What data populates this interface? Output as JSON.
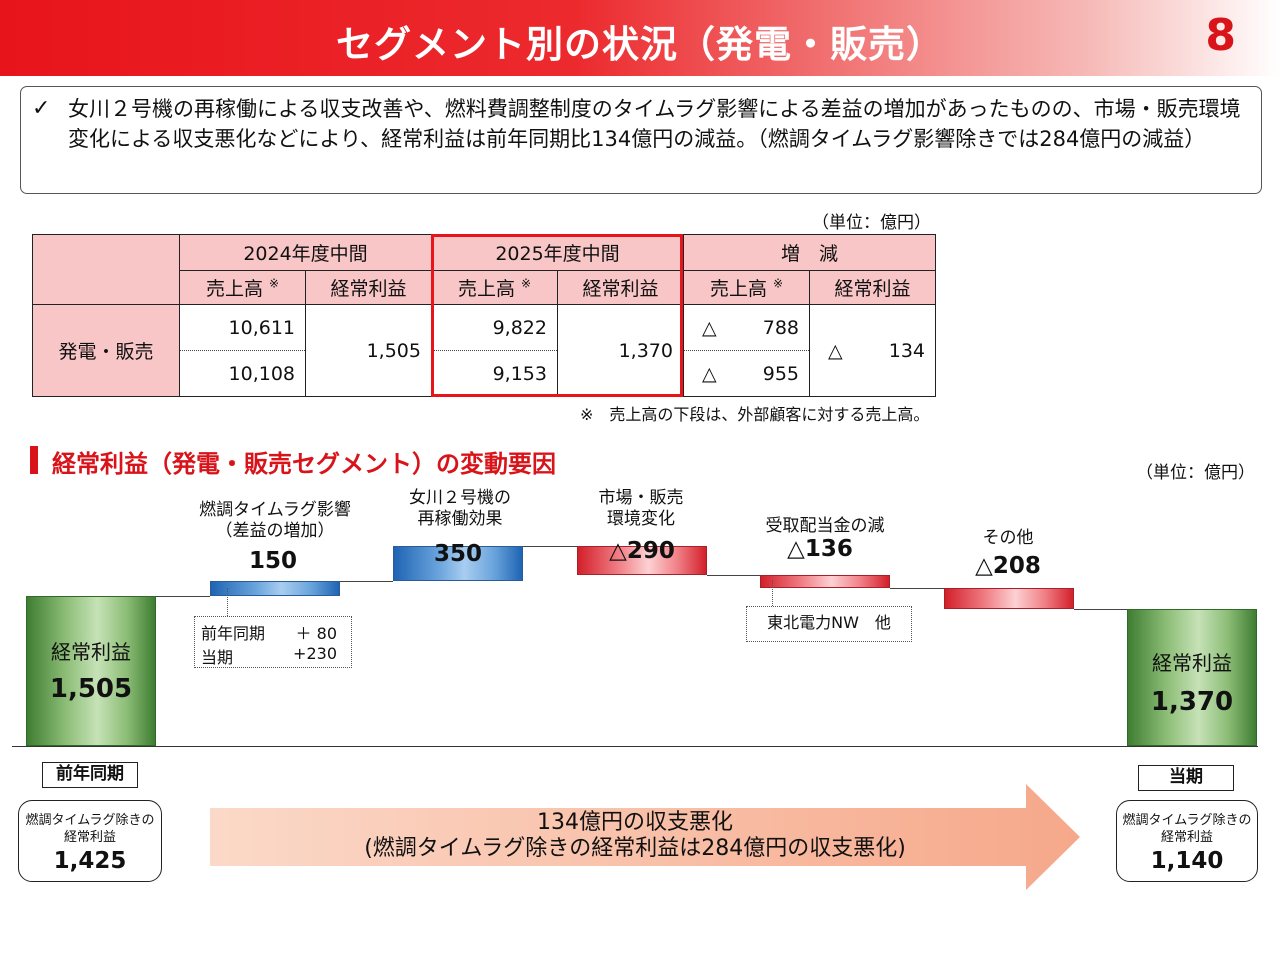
{
  "header": {
    "title": "セグメント別の状況（発電・販売）",
    "page_number": "8"
  },
  "summary": {
    "check_mark": "✓",
    "text": "女川２号機の再稼働による収支改善や、燃料費調整制度のタイムラグ影響による差益の増加があったものの、市場・販売環境変化による収支悪化などにより、経常利益は前年同期比134億円の減益。（燃調タイムラグ影響除きでは284億円の減益）"
  },
  "table": {
    "unit": "（単位：億円）",
    "periods": [
      "2024年度中間",
      "2025年度中間",
      "増　減"
    ],
    "sub_sales": "売上高",
    "note_mark": "※",
    "sub_profit": "経常利益",
    "row_label": "発電・販売",
    "y2024": {
      "sales_total": "10,611",
      "sales_external": "10,108",
      "profit": "1,505"
    },
    "y2025": {
      "sales_total": "9,822",
      "sales_external": "9,153",
      "profit": "1,370"
    },
    "delta": {
      "tri": "△",
      "sales_total": "788",
      "sales_external": "955",
      "profit": "134"
    },
    "footnote": "※　売上高の下段は、外部顧客に対する売上高。"
  },
  "section": {
    "title": "経常利益（発電・販売セグメント）の変動要因",
    "unit": "（単位：億円）"
  },
  "chart_data": {
    "type": "waterfall",
    "title": "経常利益（発電・販売セグメント）の変動要因",
    "unit": "億円",
    "start": {
      "label": "経常利益",
      "value": "1,505",
      "category": "前年同期",
      "raw": 1505
    },
    "end": {
      "label": "経常利益",
      "value": "1,370",
      "category": "当期",
      "raw": 1370
    },
    "steps": [
      {
        "label_lines": [
          "燃調タイムラグ影響",
          "（差益の増加）"
        ],
        "value_text": "150",
        "raw": 150,
        "kind": "increase"
      },
      {
        "label_lines": [
          "女川２号機の",
          "再稼働効果"
        ],
        "value_text": "350",
        "raw": 350,
        "kind": "increase"
      },
      {
        "label_lines": [
          "市場・販売",
          "環境変化"
        ],
        "value_text": "△290",
        "raw": -290,
        "kind": "decrease"
      },
      {
        "label_lines": [
          "受取配当金の減"
        ],
        "value_text": "△136",
        "raw": -136,
        "kind": "decrease"
      },
      {
        "label_lines": [
          "その他"
        ],
        "value_text": "△208",
        "raw": -208,
        "kind": "decrease"
      }
    ],
    "note_timelag": [
      {
        "label": "前年同期",
        "value": "＋ 80"
      },
      {
        "label": "当期",
        "value": "+230"
      }
    ],
    "note_dividend": "東北電力NW　他",
    "adjusted_start": {
      "label_lines": [
        "燃調タイムラグ除きの",
        "経常利益"
      ],
      "value": "1,425"
    },
    "adjusted_end": {
      "label_lines": [
        "燃調タイムラグ除きの",
        "経常利益"
      ],
      "value": "1,140"
    },
    "arrow_lines": [
      "134億円の収支悪化",
      "(燃調タイムラグ除きの経常利益は284億円の収支悪化)"
    ]
  }
}
